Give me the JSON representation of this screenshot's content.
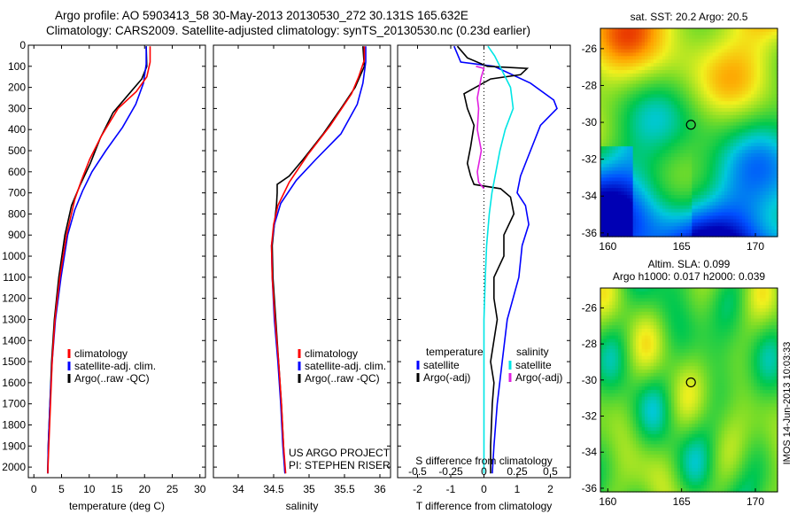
{
  "header": {
    "line1": "Argo profile: AO 5903413_58 30-May-2013 20130530_272 30.131S 165.632E",
    "line2": "Climatology: CARS2009. Satellite-adjusted climatology: synTS_20130530.nc (0.23d earlier)"
  },
  "colors": {
    "climatology": "#ff0000",
    "satellite": "#0000ff",
    "argo": "#000000",
    "sat_s": "#00e5e5",
    "argo_s": "#e020e0"
  },
  "chart_data": [
    {
      "type": "line",
      "id": "temperature",
      "xlabel": "temperature (deg C)",
      "xlim": [
        -1,
        31
      ],
      "xticks": [
        0,
        5,
        10,
        15,
        20,
        25,
        30
      ],
      "ylim": [
        2050,
        0
      ],
      "yticks": [
        0,
        100,
        200,
        300,
        400,
        500,
        600,
        700,
        800,
        900,
        1000,
        1100,
        1200,
        1300,
        1400,
        1500,
        1600,
        1700,
        1800,
        1900,
        2000
      ],
      "legend": [
        "climatology",
        "satellite-adj. clim.",
        "Argo(..raw -QC)"
      ],
      "series": [
        {
          "name": "climatology",
          "color_key": "climatology",
          "points": [
            [
              21.0,
              5
            ],
            [
              21.0,
              80
            ],
            [
              20.4,
              150
            ],
            [
              18.5,
              220
            ],
            [
              15.2,
              300
            ],
            [
              12.2,
              430
            ],
            [
              10.1,
              540
            ],
            [
              8.6,
              640
            ],
            [
              7.4,
              730
            ],
            [
              5.9,
              900
            ],
            [
              4.7,
              1100
            ],
            [
              3.8,
              1300
            ],
            [
              3.3,
              1500
            ],
            [
              3.0,
              1700
            ],
            [
              2.7,
              1900
            ],
            [
              2.5,
              2030
            ]
          ]
        },
        {
          "name": "satellite-adj. clim.",
          "color_key": "satellite",
          "points": [
            [
              20.3,
              5
            ],
            [
              20.3,
              90
            ],
            [
              19.8,
              180
            ],
            [
              18.4,
              280
            ],
            [
              16.0,
              390
            ],
            [
              13.0,
              500
            ],
            [
              10.5,
              600
            ],
            [
              8.8,
              690
            ],
            [
              7.4,
              780
            ],
            [
              6.1,
              900
            ],
            [
              4.9,
              1100
            ],
            [
              3.9,
              1300
            ],
            [
              3.3,
              1500
            ],
            [
              2.9,
              1700
            ],
            [
              2.6,
              1900
            ],
            [
              2.5,
              2030
            ]
          ]
        },
        {
          "name": "Argo(..raw -QC)",
          "color_key": "argo",
          "points": [
            [
              20.3,
              5
            ],
            [
              20.4,
              100
            ],
            [
              19.5,
              160
            ],
            [
              17.2,
              230
            ],
            [
              14.3,
              320
            ],
            [
              12.0,
              440
            ],
            [
              10.2,
              560
            ],
            [
              8.4,
              660
            ],
            [
              6.8,
              760
            ],
            [
              5.6,
              900
            ],
            [
              4.5,
              1100
            ],
            [
              3.7,
              1300
            ],
            [
              3.2,
              1500
            ],
            [
              2.9,
              1700
            ],
            [
              2.6,
              1900
            ],
            [
              2.5,
              2030
            ]
          ]
        }
      ]
    },
    {
      "type": "line",
      "id": "salinity",
      "xlabel": "salinity",
      "xlim": [
        33.65,
        36.15
      ],
      "xticks": [
        34,
        34.5,
        35,
        35.5,
        36
      ],
      "xticklabels": [
        "34",
        "34.5",
        "35",
        "35.5",
        "36"
      ],
      "ylim": [
        2050,
        0
      ],
      "legend": [
        "climatology",
        "satellite-adj. clim.",
        "Argo(..raw -QC)"
      ],
      "annotation": [
        "US ARGO PROJECT",
        "PI: STEPHEN RISER"
      ],
      "series": [
        {
          "name": "climatology",
          "color_key": "climatology",
          "points": [
            [
              35.78,
              5
            ],
            [
              35.78,
              70
            ],
            [
              35.7,
              150
            ],
            [
              35.6,
              230
            ],
            [
              35.3,
              380
            ],
            [
              34.98,
              520
            ],
            [
              34.72,
              650
            ],
            [
              34.56,
              760
            ],
            [
              34.5,
              850
            ],
            [
              34.47,
              950
            ],
            [
              34.48,
              1100
            ],
            [
              34.52,
              1300
            ],
            [
              34.57,
              1500
            ],
            [
              34.61,
              1700
            ],
            [
              34.64,
              1900
            ],
            [
              34.67,
              2030
            ]
          ]
        },
        {
          "name": "satellite-adj. clim.",
          "color_key": "satellite",
          "points": [
            [
              35.8,
              5
            ],
            [
              35.8,
              80
            ],
            [
              35.76,
              180
            ],
            [
              35.68,
              280
            ],
            [
              35.45,
              420
            ],
            [
              35.1,
              540
            ],
            [
              34.82,
              640
            ],
            [
              34.6,
              750
            ],
            [
              34.51,
              850
            ],
            [
              34.47,
              950
            ],
            [
              34.48,
              1100
            ],
            [
              34.51,
              1300
            ],
            [
              34.56,
              1500
            ],
            [
              34.6,
              1700
            ],
            [
              34.63,
              1900
            ],
            [
              34.66,
              2030
            ]
          ]
        },
        {
          "name": "Argo(..raw -QC)",
          "color_key": "argo",
          "points": [
            [
              35.76,
              5
            ],
            [
              35.78,
              100
            ],
            [
              35.65,
              200
            ],
            [
              35.45,
              300
            ],
            [
              35.2,
              420
            ],
            [
              34.92,
              540
            ],
            [
              34.72,
              620
            ],
            [
              34.55,
              660
            ],
            [
              34.55,
              700
            ],
            [
              34.54,
              760
            ],
            [
              34.51,
              850
            ],
            [
              34.48,
              950
            ],
            [
              34.49,
              1100
            ],
            [
              34.53,
              1300
            ],
            [
              34.57,
              1500
            ],
            [
              34.61,
              1700
            ],
            [
              34.64,
              1900
            ],
            [
              34.66,
              2030
            ]
          ]
        }
      ]
    },
    {
      "type": "line",
      "id": "differences",
      "xlabel": "T difference from climatology",
      "xlabel2": "S difference from climatology",
      "xlim": [
        -2.6,
        2.6
      ],
      "xticks": [
        -2,
        -1,
        0,
        1,
        2
      ],
      "xticklabels": [
        "-2",
        "-1",
        "0",
        "1",
        "2"
      ],
      "sticks": [
        -0.5,
        -0.25,
        0,
        0.25,
        0.5
      ],
      "sticklabels": [
        "-0.5",
        "-0.25",
        "0",
        "0.25",
        "0.5"
      ],
      "s_scale": 4,
      "ylim": [
        2050,
        0
      ],
      "legend_t_title": "temperature",
      "legend_s_title": "salinity",
      "legend": [
        "satellite",
        "Argo(-adj)",
        "satellite",
        "Argo(-adj)"
      ],
      "series": [
        {
          "name": "satellite",
          "group": "temperature",
          "color_key": "satellite",
          "points": [
            [
              -0.9,
              5
            ],
            [
              -0.7,
              80
            ],
            [
              0.3,
              100
            ],
            [
              1.4,
              180
            ],
            [
              2.1,
              260
            ],
            [
              2.2,
              300
            ],
            [
              1.7,
              380
            ],
            [
              1.5,
              460
            ],
            [
              1.3,
              540
            ],
            [
              1.1,
              620
            ],
            [
              1.0,
              700
            ],
            [
              1.25,
              760
            ],
            [
              1.35,
              850
            ],
            [
              1.15,
              950
            ],
            [
              1.05,
              1100
            ],
            [
              0.7,
              1300
            ],
            [
              0.55,
              1500
            ],
            [
              0.4,
              1700
            ],
            [
              0.3,
              1900
            ],
            [
              0.25,
              2030
            ]
          ]
        },
        {
          "name": "Argo(-adj)",
          "group": "temperature",
          "color_key": "argo",
          "points": [
            [
              -0.8,
              5
            ],
            [
              -0.5,
              60
            ],
            [
              0.1,
              100
            ],
            [
              1.3,
              110
            ],
            [
              1.1,
              140
            ],
            [
              0.2,
              160
            ],
            [
              -0.6,
              230
            ],
            [
              -0.5,
              300
            ],
            [
              -0.3,
              380
            ],
            [
              -0.4,
              480
            ],
            [
              -0.5,
              560
            ],
            [
              -0.4,
              620
            ],
            [
              -0.3,
              660
            ],
            [
              0.5,
              680
            ],
            [
              0.8,
              720
            ],
            [
              0.9,
              800
            ],
            [
              0.6,
              900
            ],
            [
              0.6,
              1000
            ],
            [
              0.3,
              1100
            ],
            [
              0.3,
              1200
            ],
            [
              0.4,
              1300
            ],
            [
              0.2,
              1500
            ],
            [
              0.3,
              1600
            ],
            [
              0.25,
              1700
            ],
            [
              0.2,
              1900
            ],
            [
              0.2,
              2030
            ]
          ]
        },
        {
          "name": "satellite",
          "group": "salinity",
          "color_key": "sat_s",
          "points": [
            [
              0.03,
              5
            ],
            [
              0.08,
              50
            ],
            [
              0.12,
              100
            ],
            [
              0.2,
              200
            ],
            [
              0.22,
              300
            ],
            [
              0.16,
              400
            ],
            [
              0.12,
              500
            ],
            [
              0.09,
              600
            ],
            [
              0.06,
              700
            ],
            [
              0.04,
              800
            ],
            [
              0.02,
              950
            ],
            [
              0.01,
              1100
            ],
            [
              0.0,
              1300
            ],
            [
              0.0,
              1500
            ],
            [
              0.0,
              1700
            ],
            [
              0.0,
              1900
            ],
            [
              0.0,
              2030
            ]
          ]
        },
        {
          "name": "Argo(-adj)",
          "group": "salinity",
          "color_key": "argo_s",
          "points": [
            [
              -0.06,
              100
            ],
            [
              0.0,
              110
            ],
            [
              -0.02,
              150
            ],
            [
              -0.05,
              250
            ],
            [
              -0.04,
              300
            ],
            [
              -0.05,
              400
            ],
            [
              -0.02,
              500
            ],
            [
              -0.05,
              600
            ],
            [
              -0.04,
              650
            ],
            [
              0.0,
              680
            ]
          ]
        }
      ]
    },
    {
      "type": "heatmap",
      "id": "sst-map",
      "title": "sat. SST: 20.2 Argo: 20.5",
      "xticks": [
        160,
        165,
        170
      ],
      "yticks": [
        -26,
        -28,
        -30,
        -32,
        -34,
        -36
      ],
      "xlim": [
        159.5,
        171.5
      ],
      "ylim": [
        -36.2,
        -24.9
      ],
      "argo_lon": 165.632,
      "argo_lat": -30.131
    },
    {
      "type": "heatmap",
      "id": "sla-map",
      "title": "Altim. SLA: 0.099",
      "subtitle": "Argo h1000: 0.017 h2000: 0.039",
      "xticks": [
        160,
        165,
        170
      ],
      "yticks": [
        -26,
        -28,
        -30,
        -32,
        -34,
        -36
      ],
      "xlim": [
        159.5,
        171.5
      ],
      "ylim": [
        -36.2,
        -24.9
      ],
      "argo_lon": 165.632,
      "argo_lat": -30.131
    }
  ],
  "footer_stamp": "IMOS 14-Jun-2013 10:03:33"
}
